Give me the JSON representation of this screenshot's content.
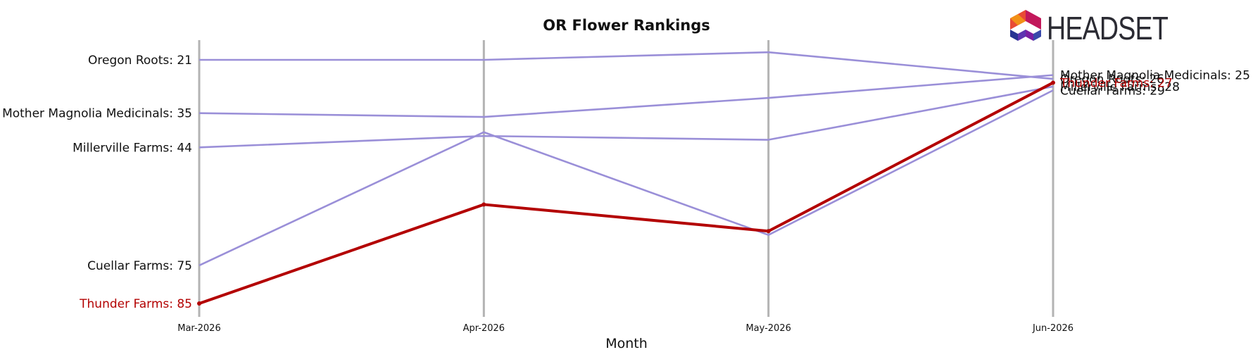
{
  "chart_data": {
    "type": "line",
    "title": "OR Flower Rankings",
    "xlabel": "Month",
    "ylabel": "",
    "x": [
      "Mar-2026",
      "Apr-2026",
      "May-2026",
      "Jun-2026"
    ],
    "y_inverted": true,
    "ylim": [
      18,
      86
    ],
    "grid": "vertical lines at each month",
    "highlight_color": "#b30000",
    "other_color": "#9a8fd8",
    "series": [
      {
        "name": "Oregon Roots",
        "values": [
          21,
          21,
          19,
          26
        ],
        "start_label": "Oregon Roots: 21",
        "end_label": "Oregon Roots: 26",
        "highlight": false
      },
      {
        "name": "Mother Magnolia Medicinals",
        "values": [
          35,
          36,
          31,
          25
        ],
        "start_label": "Mother Magnolia Medicinals: 35",
        "end_label": "Mother Magnolia Medicinals: 25",
        "highlight": false
      },
      {
        "name": "Millerville Farms",
        "values": [
          44,
          41,
          42,
          28
        ],
        "start_label": "Millerville Farms: 44",
        "end_label": "Millerville Farms: 28",
        "highlight": false
      },
      {
        "name": "Cuellar Farms",
        "values": [
          75,
          40,
          67,
          29
        ],
        "start_label": "Cuellar Farms: 75",
        "end_label": "Cuellar Farms: 29",
        "highlight": false
      },
      {
        "name": "Thunder Farms",
        "values": [
          85,
          59,
          66,
          27
        ],
        "start_label": "Thunder Farms: 85",
        "end_label": "Thunder Farms: 27",
        "highlight": true
      }
    ]
  },
  "logo": {
    "text": "HEADSET"
  }
}
